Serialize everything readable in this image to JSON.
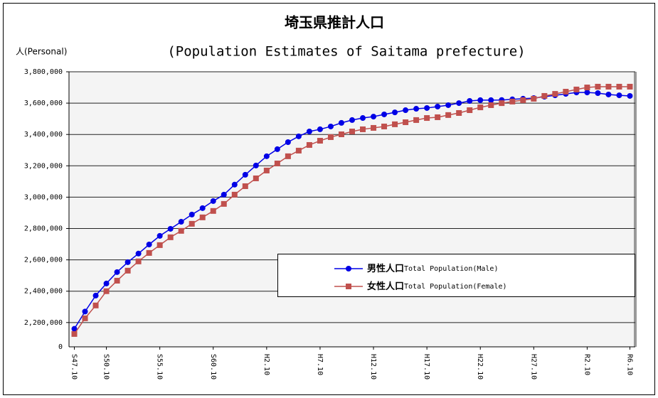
{
  "chart_data": {
    "type": "line",
    "title": "埼玉県推計人口",
    "subtitle": "(Population Estimates of Saitama prefecture)",
    "y_axis_label": "人(Personal)",
    "axis_break_label": "0",
    "categories": [
      "S47.10",
      null,
      null,
      "S50.10",
      null,
      null,
      null,
      null,
      "S55.10",
      null,
      null,
      null,
      null,
      "S60.10",
      null,
      null,
      null,
      null,
      "H2.10",
      null,
      null,
      null,
      null,
      "H7.10",
      null,
      null,
      null,
      null,
      "H12.10",
      null,
      null,
      null,
      null,
      "H17.10",
      null,
      null,
      null,
      null,
      "H22.10",
      null,
      null,
      null,
      null,
      "H27.10",
      null,
      null,
      null,
      null,
      "R2.10",
      null,
      null,
      null,
      "R6.10"
    ],
    "series": [
      {
        "name": "男性人口",
        "name_en": "Total Population(Male)",
        "color": "#0000e6",
        "marker": "circle",
        "values": [
          2160000,
          2270000,
          2372000,
          2449000,
          2522000,
          2585000,
          2640000,
          2698000,
          2753000,
          2798000,
          2843000,
          2889000,
          2930000,
          2975000,
          3016000,
          3080000,
          3143000,
          3202000,
          3261000,
          3306000,
          3351000,
          3388000,
          3419000,
          3433000,
          3451000,
          3474000,
          3492000,
          3505000,
          3514000,
          3528000,
          3541000,
          3555000,
          3564000,
          3569000,
          3578000,
          3587000,
          3600000,
          3614000,
          3619000,
          3619000,
          3620000,
          3624000,
          3628000,
          3632000,
          3641000,
          3650000,
          3659000,
          3668000,
          3668000,
          3664000,
          3655000,
          3650000,
          3646000
        ]
      },
      {
        "name": "女性人口",
        "name_en": "Total Population(Female)",
        "color": "#c0504d",
        "marker": "square",
        "values": [
          2127000,
          2227000,
          2309000,
          2400000,
          2467000,
          2531000,
          2590000,
          2644000,
          2694000,
          2744000,
          2785000,
          2830000,
          2871000,
          2912000,
          2957000,
          3016000,
          3070000,
          3120000,
          3170000,
          3215000,
          3261000,
          3297000,
          3333000,
          3360000,
          3383000,
          3401000,
          3419000,
          3433000,
          3442000,
          3451000,
          3465000,
          3478000,
          3492000,
          3505000,
          3510000,
          3524000,
          3537000,
          3555000,
          3573000,
          3587000,
          3600000,
          3610000,
          3619000,
          3628000,
          3646000,
          3659000,
          3673000,
          3687000,
          3700000,
          3705000,
          3705000,
          3705000,
          3705000
        ]
      }
    ],
    "ylim": [
      2045000,
      3800000
    ],
    "yticks": [
      {
        "value": 2200000,
        "label": "2,200,000"
      },
      {
        "value": 2400000,
        "label": "2,400,000"
      },
      {
        "value": 2600000,
        "label": "2,600,000"
      },
      {
        "value": 2800000,
        "label": "2,800,000"
      },
      {
        "value": 3000000,
        "label": "3,000,000"
      },
      {
        "value": 3200000,
        "label": "3,200,000"
      },
      {
        "value": 3400000,
        "label": "3,400,000"
      },
      {
        "value": 3600000,
        "label": "3,600,000"
      },
      {
        "value": 3800000,
        "label": "3,800,000"
      }
    ],
    "grid": true
  }
}
